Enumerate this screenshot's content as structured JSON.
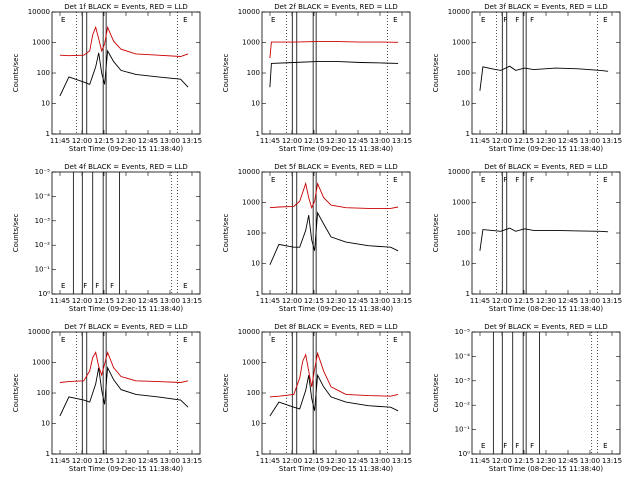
{
  "chart_data": [
    {
      "type": "line",
      "title": "Det 1f BLACK = Events, RED = LLD",
      "xlabel": "Start Time (09-Dec-15 11:38:40)",
      "ylabel": "Counts/sec",
      "x_ticks": [
        "11:45",
        "12:00",
        "12:15",
        "12:30",
        "12:45",
        "13:00",
        "13:15"
      ],
      "y_ticks": [
        "1",
        "10",
        "100",
        "1000",
        "10000"
      ],
      "ylim": [
        1,
        15000
      ],
      "y_scale": "log",
      "series": [
        {
          "color": "#000000",
          "x": [
            "11:44",
            "11:50",
            "12:00",
            "12:04",
            "12:08",
            "12:10",
            "12:12",
            "12:14",
            "12:16",
            "12:20",
            "12:25",
            "12:35",
            "12:50",
            "13:05",
            "13:10"
          ],
          "values": [
            20,
            90,
            60,
            50,
            200,
            600,
            120,
            50,
            700,
            300,
            150,
            110,
            90,
            75,
            40
          ]
        },
        {
          "color": "#cc0000",
          "x": [
            "11:44",
            "11:50",
            "12:00",
            "12:04",
            "12:06",
            "12:08",
            "12:10",
            "12:12",
            "12:14",
            "12:16",
            "12:20",
            "12:25",
            "12:35",
            "12:50",
            "13:05",
            "13:10"
          ],
          "values": [
            500,
            480,
            500,
            700,
            2500,
            4500,
            1800,
            700,
            1200,
            4500,
            1500,
            800,
            550,
            500,
            450,
            550
          ]
        }
      ],
      "solid_lines_x": [
        "11:59",
        "12:02",
        "12:13",
        "12:15"
      ],
      "dotted_lines_x": [
        "11:55",
        "13:03"
      ],
      "markers": [
        {
          "x": "11:44",
          "text": "E"
        },
        {
          "x": "13:06",
          "text": "E"
        }
      ]
    },
    {
      "type": "line",
      "title": "Det 2f BLACK = Events, RED = LLD",
      "xlabel": "Start Time (09-Dec-15 11:38:40)",
      "ylabel": "Counts/sec",
      "x_ticks": [
        "11:45",
        "12:00",
        "12:15",
        "12:30",
        "12:45",
        "13:00",
        "13:15"
      ],
      "y_ticks": [
        "1",
        "10",
        "100",
        "1000",
        "10000"
      ],
      "ylim": [
        1,
        15000
      ],
      "y_scale": "log",
      "series": [
        {
          "color": "#000000",
          "x": [
            "11:44",
            "11:45",
            "12:00",
            "12:15",
            "12:30",
            "12:45",
            "13:00",
            "13:10"
          ],
          "values": [
            40,
            260,
            280,
            300,
            300,
            280,
            270,
            260
          ]
        },
        {
          "color": "#cc0000",
          "x": [
            "11:44",
            "11:45",
            "12:00",
            "12:15",
            "12:30",
            "12:45",
            "13:00",
            "13:10"
          ],
          "values": [
            400,
            1400,
            1400,
            1450,
            1450,
            1400,
            1400,
            1380
          ]
        }
      ],
      "solid_lines_x": [
        "11:59",
        "12:02",
        "12:13",
        "12:15"
      ],
      "dotted_lines_x": [
        "11:55",
        "13:03"
      ],
      "markers": [
        {
          "x": "11:44",
          "text": "E"
        },
        {
          "x": "13:06",
          "text": "E"
        }
      ]
    },
    {
      "type": "line",
      "title": "Det 3f BLACK = Events, RED = LLD",
      "xlabel": "Start Time (09-Dec-15 11:38:40)",
      "ylabel": "Counts/sec",
      "x_ticks": [
        "11:45",
        "12:00",
        "12:15",
        "12:30",
        "12:45",
        "13:00",
        "13:15"
      ],
      "y_ticks": [
        "1",
        "10",
        "100",
        "1000",
        "10000"
      ],
      "ylim": [
        1,
        15000
      ],
      "y_scale": "log",
      "series": [
        {
          "color": "#000000",
          "x": [
            "11:44",
            "11:46",
            "11:52",
            "11:58",
            "12:04",
            "12:08",
            "12:14",
            "12:20",
            "12:35",
            "12:50",
            "13:05",
            "13:10"
          ],
          "values": [
            30,
            200,
            170,
            150,
            210,
            150,
            180,
            160,
            180,
            170,
            150,
            140
          ]
        }
      ],
      "solid_lines_x": [
        "11:59",
        "12:02",
        "12:13",
        "12:15"
      ],
      "dotted_lines_x": [
        "11:55",
        "13:03"
      ],
      "markers": [
        {
          "x": "11:44",
          "text": "E"
        },
        {
          "x": "11:59",
          "text": "F"
        },
        {
          "x": "12:07",
          "text": "F"
        },
        {
          "x": "12:17",
          "text": "F"
        },
        {
          "x": "13:06",
          "text": "E"
        }
      ]
    },
    {
      "type": "line",
      "title": "Det 4f BLACK = Events, RED = LLD",
      "xlabel": "Start Time (09-Dec-15 11:38:40)",
      "ylabel": "Counts/sec",
      "x_ticks": [
        "11:45",
        "12:00",
        "12:15",
        "12:30",
        "12:45",
        "13:00",
        "13:15"
      ],
      "y_ticks": [
        "10⁰",
        "10⁻¹",
        "10⁻²",
        "10⁻³",
        "10⁻⁴",
        "10⁻⁵"
      ],
      "series": [],
      "solid_lines_x": [
        "11:53",
        "11:59",
        "12:06",
        "12:13",
        "12:15",
        "12:24"
      ],
      "dotted_lines_x": [
        "12:59",
        "13:03"
      ],
      "markers": [
        {
          "x": "11:44",
          "text": "E"
        },
        {
          "x": "11:59",
          "text": "F"
        },
        {
          "x": "12:07",
          "text": "F"
        },
        {
          "x": "12:17",
          "text": "F"
        },
        {
          "x": "13:06",
          "text": "E"
        }
      ]
    },
    {
      "type": "line",
      "title": "Det 5f BLACK = Events, RED = LLD",
      "xlabel": "Start Time (09-Dec-15 11:38:40)",
      "ylabel": "Counts/sec",
      "x_ticks": [
        "11:45",
        "12:00",
        "12:15",
        "12:30",
        "12:45",
        "13:00",
        "13:15"
      ],
      "y_ticks": [
        "1",
        "10",
        "100",
        "1000",
        "10000"
      ],
      "ylim": [
        1,
        15000
      ],
      "y_scale": "log",
      "series": [
        {
          "color": "#000000",
          "x": [
            "11:44",
            "11:50",
            "12:00",
            "12:04",
            "12:08",
            "12:10",
            "12:12",
            "12:14",
            "12:16",
            "12:20",
            "12:25",
            "12:35",
            "12:50",
            "13:05",
            "13:10"
          ],
          "values": [
            10,
            50,
            40,
            40,
            150,
            500,
            70,
            30,
            600,
            250,
            90,
            60,
            45,
            40,
            30
          ]
        },
        {
          "color": "#cc0000",
          "x": [
            "11:44",
            "11:50",
            "12:00",
            "12:04",
            "12:06",
            "12:08",
            "12:10",
            "12:12",
            "12:14",
            "12:16",
            "12:20",
            "12:25",
            "12:35",
            "12:50",
            "13:05",
            "13:10"
          ],
          "values": [
            900,
            950,
            1000,
            1500,
            3000,
            6000,
            2000,
            900,
            1500,
            6000,
            2000,
            1100,
            900,
            850,
            850,
            950
          ]
        }
      ],
      "solid_lines_x": [
        "11:59",
        "12:02",
        "12:13",
        "12:15"
      ],
      "dotted_lines_x": [
        "11:55",
        "13:03"
      ],
      "markers": [
        {
          "x": "11:44",
          "text": "E"
        },
        {
          "x": "13:06",
          "text": "E"
        }
      ]
    },
    {
      "type": "line",
      "title": "Det 6f BLACK = Events, RED = LLD",
      "xlabel": "Start Time (08-Dec-15 11:38:40)",
      "ylabel": "Counts/sec",
      "x_ticks": [
        "11:45",
        "12:00",
        "12:15",
        "12:30",
        "12:45",
        "13:00",
        "13:15"
      ],
      "y_ticks": [
        "1",
        "10",
        "100",
        "1000",
        "10000"
      ],
      "ylim": [
        1,
        15000
      ],
      "y_scale": "log",
      "series": [
        {
          "color": "#000000",
          "x": [
            "11:44",
            "11:46",
            "11:52",
            "11:58",
            "12:04",
            "12:08",
            "12:14",
            "12:20",
            "12:35",
            "12:50",
            "13:05",
            "13:10"
          ],
          "values": [
            30,
            160,
            150,
            140,
            180,
            140,
            170,
            150,
            150,
            145,
            140,
            135
          ]
        }
      ],
      "solid_lines_x": [
        "11:59",
        "12:02",
        "12:13",
        "12:15"
      ],
      "dotted_lines_x": [
        "11:55",
        "13:03"
      ],
      "markers": [
        {
          "x": "11:44",
          "text": "E"
        },
        {
          "x": "11:59",
          "text": "F"
        },
        {
          "x": "12:07",
          "text": "F"
        },
        {
          "x": "12:17",
          "text": "F"
        },
        {
          "x": "13:06",
          "text": "E"
        }
      ]
    },
    {
      "type": "line",
      "title": "Det 7f BLACK = Events, RED = LLD",
      "xlabel": "Start Time (09-Dec-15 11:38:40)",
      "ylabel": "Counts/sec",
      "x_ticks": [
        "11:45",
        "12:00",
        "12:15",
        "12:30",
        "12:45",
        "13:00",
        "13:15"
      ],
      "y_ticks": [
        "1",
        "10",
        "100",
        "1000",
        "10000"
      ],
      "ylim": [
        1,
        15000
      ],
      "y_scale": "log",
      "series": [
        {
          "color": "#000000",
          "x": [
            "11:44",
            "11:50",
            "12:00",
            "12:04",
            "12:08",
            "12:10",
            "12:12",
            "12:14",
            "12:16",
            "12:20",
            "12:25",
            "12:35",
            "12:50",
            "13:05",
            "13:10"
          ],
          "values": [
            20,
            90,
            70,
            60,
            250,
            900,
            150,
            50,
            900,
            350,
            160,
            110,
            90,
            70,
            40
          ]
        },
        {
          "color": "#cc0000",
          "x": [
            "11:44",
            "11:50",
            "12:00",
            "12:04",
            "12:06",
            "12:08",
            "12:10",
            "12:12",
            "12:14",
            "12:16",
            "12:20",
            "12:25",
            "12:35",
            "12:50",
            "13:05",
            "13:10"
          ],
          "values": [
            280,
            300,
            320,
            700,
            2000,
            3000,
            1000,
            500,
            1200,
            3000,
            900,
            450,
            320,
            300,
            280,
            320
          ]
        }
      ],
      "solid_lines_x": [
        "11:59",
        "12:02",
        "12:13",
        "12:15"
      ],
      "dotted_lines_x": [
        "11:55",
        "13:03"
      ],
      "markers": [
        {
          "x": "11:44",
          "text": "E"
        },
        {
          "x": "13:06",
          "text": "E"
        }
      ]
    },
    {
      "type": "line",
      "title": "Det 8f BLACK = Events, RED = LLD",
      "xlabel": "Start Time (09-Dec-15 11:38:40)",
      "ylabel": "Counts/sec",
      "x_ticks": [
        "11:45",
        "12:00",
        "12:15",
        "12:30",
        "12:45",
        "13:00",
        "13:15"
      ],
      "y_ticks": [
        "1",
        "10",
        "100",
        "1000",
        "10000"
      ],
      "ylim": [
        1,
        15000
      ],
      "y_scale": "log",
      "series": [
        {
          "color": "#000000",
          "x": [
            "11:44",
            "11:50",
            "12:00",
            "12:04",
            "12:08",
            "12:10",
            "12:12",
            "12:14",
            "12:16",
            "12:20",
            "12:25",
            "12:35",
            "12:50",
            "13:05",
            "13:10"
          ],
          "values": [
            20,
            60,
            40,
            35,
            150,
            500,
            80,
            30,
            500,
            200,
            90,
            60,
            45,
            40,
            30
          ]
        },
        {
          "color": "#cc0000",
          "x": [
            "11:44",
            "11:50",
            "12:00",
            "12:04",
            "12:06",
            "12:08",
            "12:10",
            "12:12",
            "12:14",
            "12:16",
            "12:20",
            "12:25",
            "12:35",
            "12:50",
            "13:05",
            "13:10"
          ],
          "values": [
            90,
            95,
            110,
            400,
            1500,
            2500,
            700,
            200,
            800,
            2800,
            700,
            200,
            110,
            100,
            95,
            110
          ]
        }
      ],
      "solid_lines_x": [
        "11:59",
        "12:02",
        "12:13",
        "12:15"
      ],
      "dotted_lines_x": [
        "11:55",
        "13:03"
      ],
      "markers": [
        {
          "x": "11:44",
          "text": "E"
        },
        {
          "x": "13:06",
          "text": "E"
        }
      ]
    },
    {
      "type": "line",
      "title": "Det 9f BLACK = Events, RED = LLD",
      "xlabel": "Start Time (08-Dec-15 11:38:40)",
      "ylabel": "Counts/sec",
      "x_ticks": [
        "11:45",
        "12:00",
        "12:15",
        "12:30",
        "12:45",
        "13:00",
        "13:15"
      ],
      "y_ticks": [
        "10⁰",
        "10⁻¹",
        "10⁻²",
        "10⁻³",
        "10⁻⁴",
        "10⁻⁵"
      ],
      "series": [],
      "solid_lines_x": [
        "11:53",
        "11:59",
        "12:06",
        "12:13",
        "12:15",
        "12:24"
      ],
      "dotted_lines_x": [
        "12:59",
        "13:03"
      ],
      "markers": [
        {
          "x": "11:44",
          "text": "E"
        },
        {
          "x": "11:59",
          "text": "F"
        },
        {
          "x": "12:07",
          "text": "F"
        },
        {
          "x": "12:17",
          "text": "F"
        },
        {
          "x": "13:06",
          "text": "E"
        }
      ]
    }
  ]
}
